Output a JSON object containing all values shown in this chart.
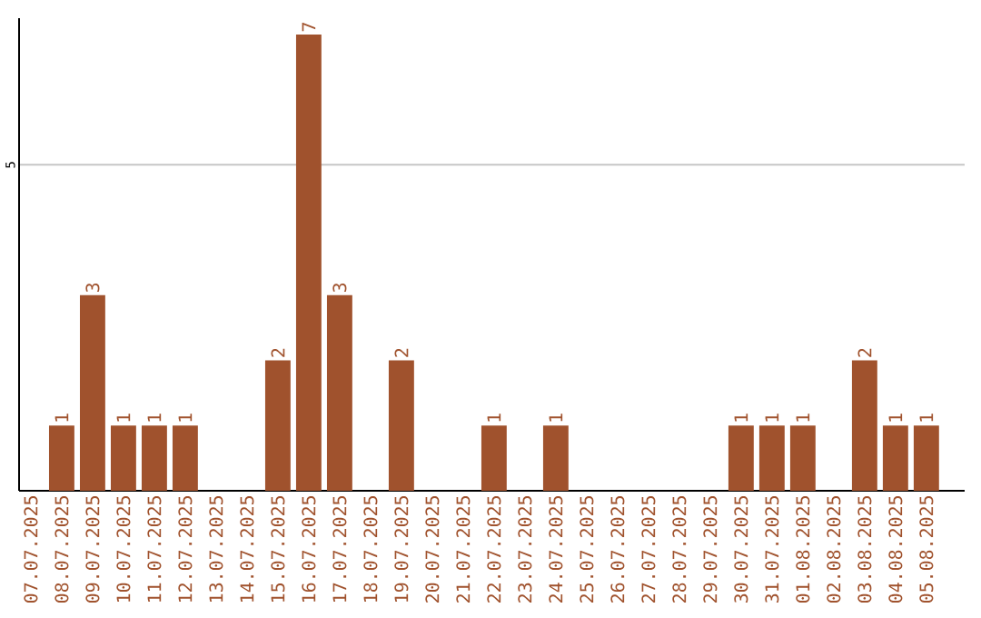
{
  "chart_data": {
    "type": "bar",
    "categories": [
      "07.07.2025",
      "08.07.2025",
      "09.07.2025",
      "10.07.2025",
      "11.07.2025",
      "12.07.2025",
      "13.07.2025",
      "14.07.2025",
      "15.07.2025",
      "16.07.2025",
      "17.07.2025",
      "18.07.2025",
      "19.07.2025",
      "20.07.2025",
      "21.07.2025",
      "22.07.2025",
      "23.07.2025",
      "24.07.2025",
      "25.07.2025",
      "26.07.2025",
      "27.07.2025",
      "28.07.2025",
      "29.07.2025",
      "30.07.2025",
      "31.07.2025",
      "01.08.2025",
      "02.08.2025",
      "03.08.2025",
      "04.08.2025",
      "05.08.2025"
    ],
    "values": [
      0,
      1,
      3,
      1,
      1,
      1,
      0,
      0,
      2,
      7,
      3,
      0,
      2,
      0,
      0,
      1,
      0,
      1,
      0,
      0,
      0,
      0,
      0,
      1,
      1,
      1,
      0,
      2,
      1,
      1
    ],
    "value_labels": [
      null,
      "1",
      "3",
      "1",
      "1",
      "1",
      null,
      null,
      "2",
      "7",
      "3",
      null,
      "2",
      null,
      null,
      "1",
      null,
      "1",
      null,
      null,
      null,
      null,
      null,
      "1",
      "1",
      "1",
      null,
      "2",
      "1",
      "1"
    ],
    "color": "#a0522d",
    "ylim": [
      0,
      7.25
    ],
    "yticks": [
      5
    ],
    "grid": "y"
  }
}
